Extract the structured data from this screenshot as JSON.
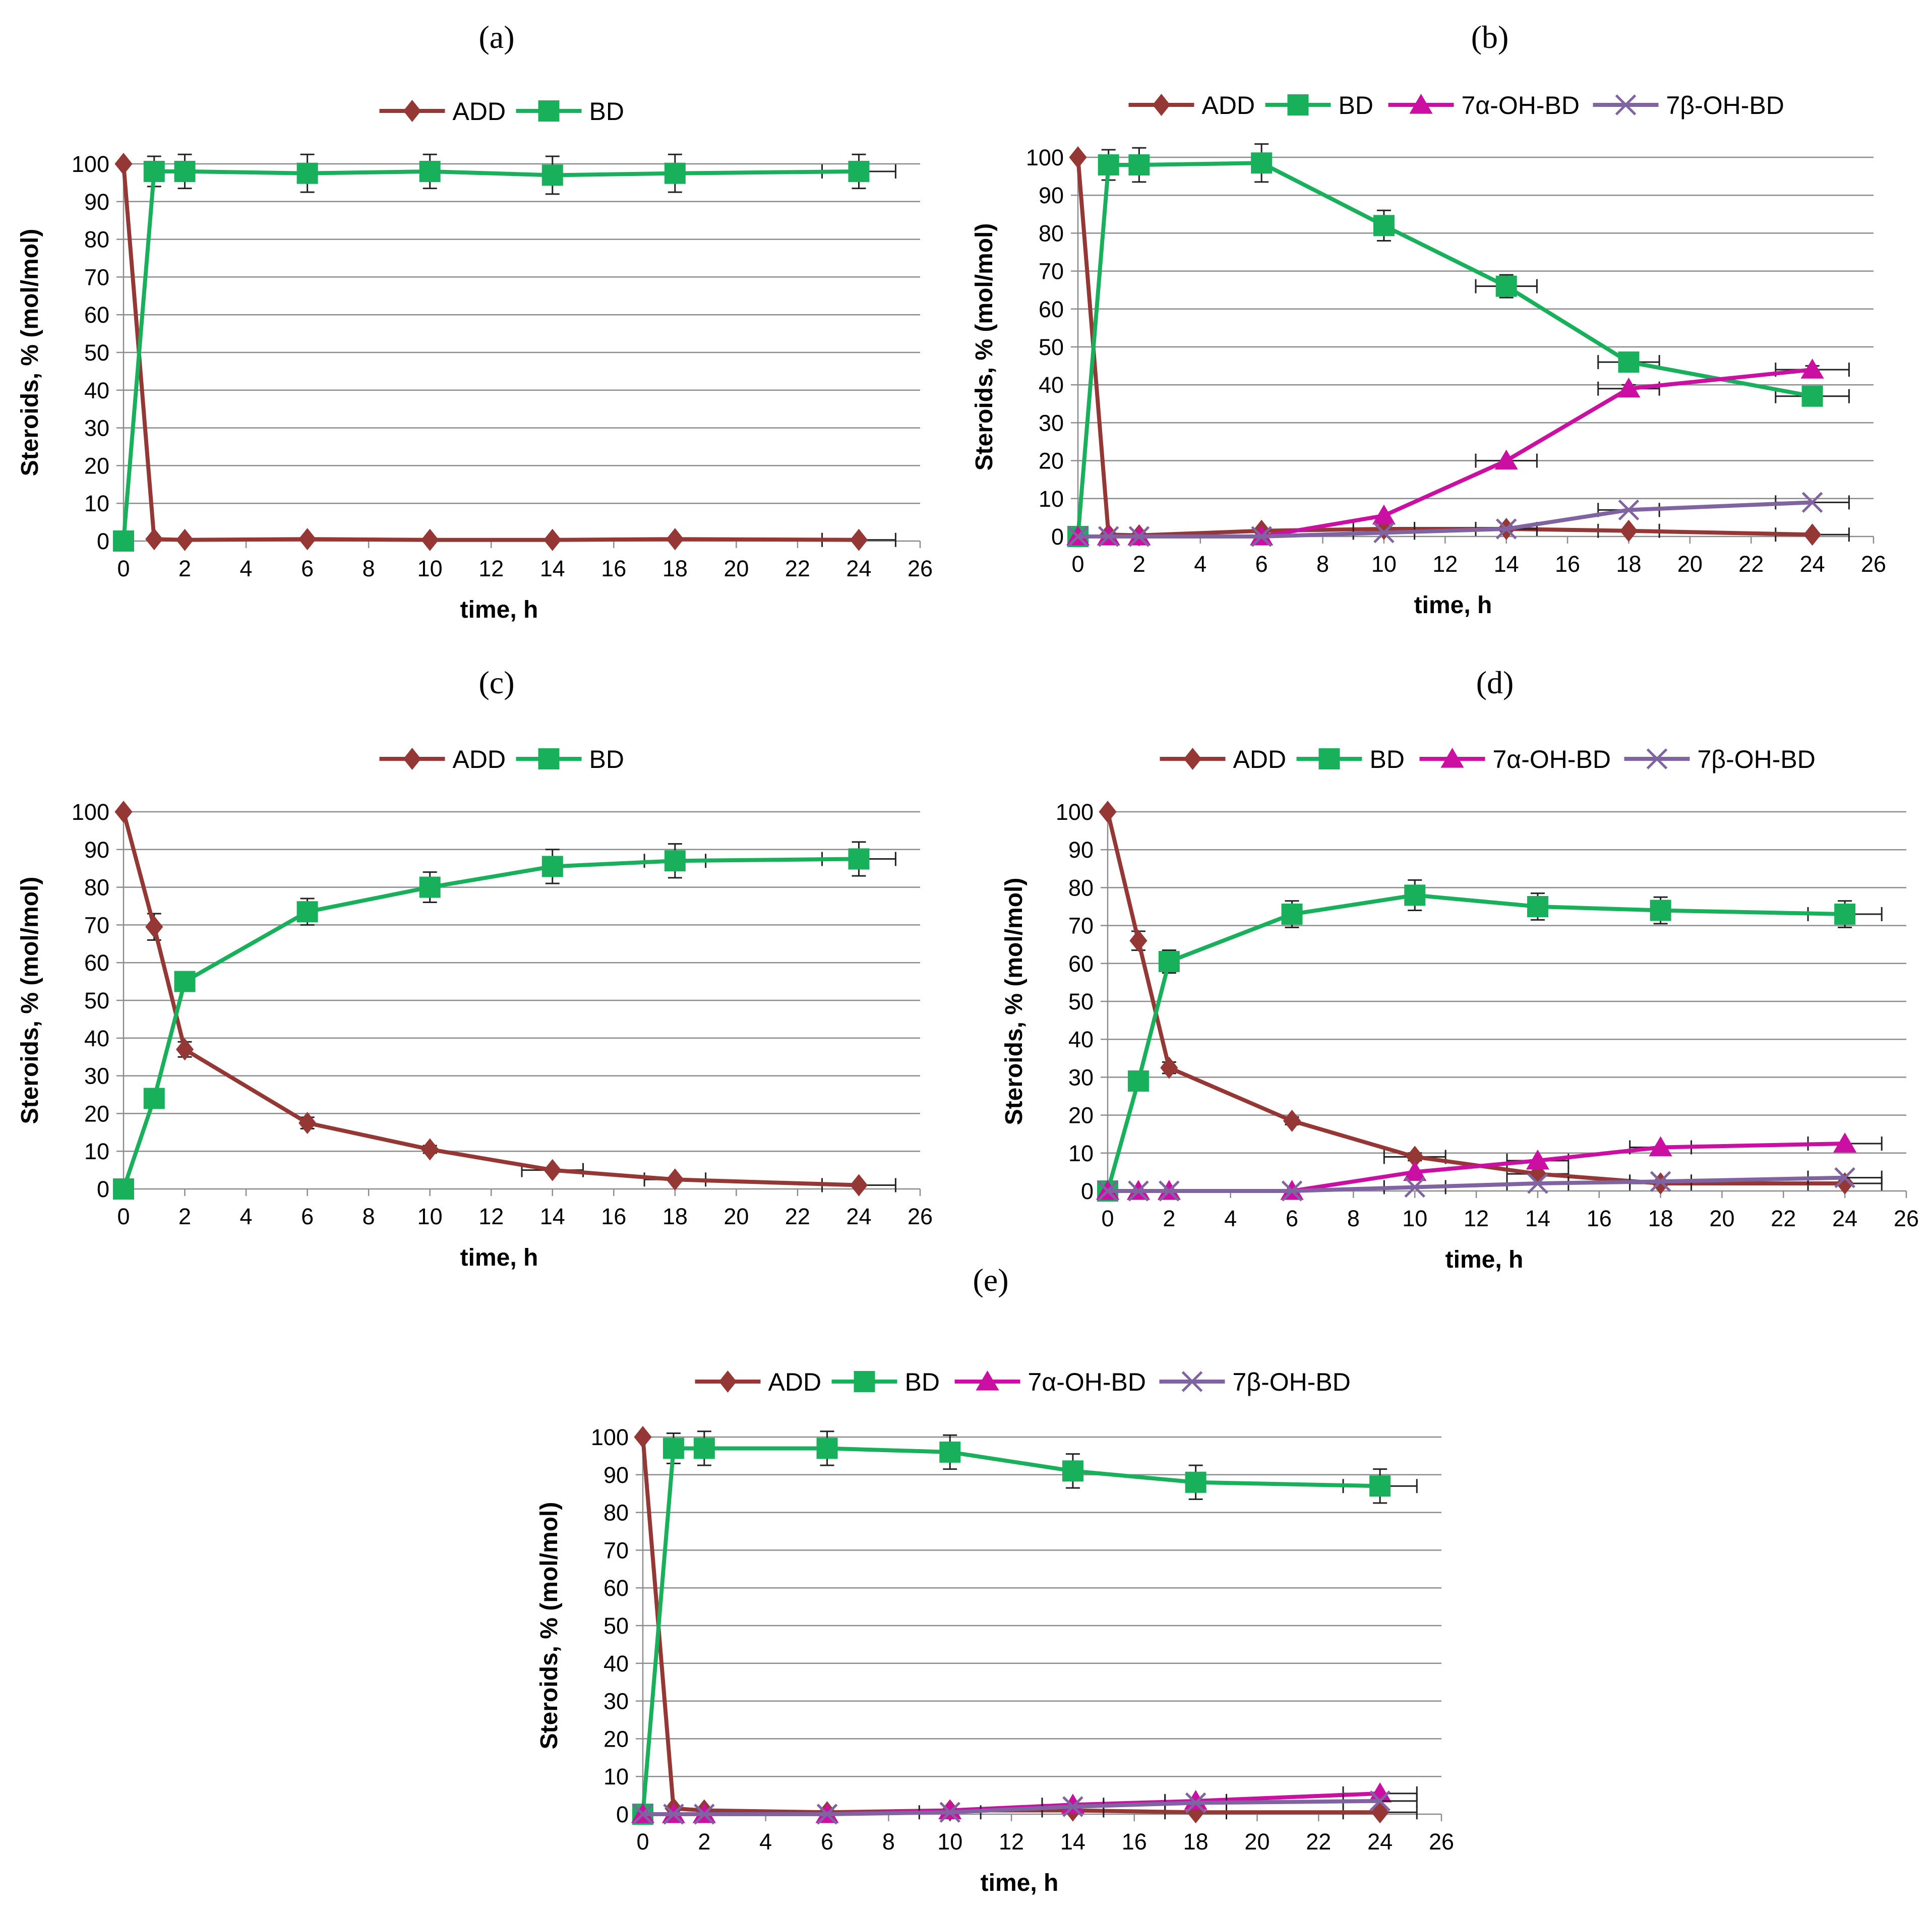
{
  "chart_data": [
    {
      "panel": "(a)",
      "type": "line",
      "xlabel": "time, h",
      "ylabel": "Steroids, % (mol/mol)",
      "xlim": [
        0,
        26
      ],
      "ylim": [
        0,
        100
      ],
      "xticks": [
        0,
        2,
        4,
        6,
        8,
        10,
        12,
        14,
        16,
        18,
        20,
        22,
        24,
        26
      ],
      "yticks": [
        0,
        10,
        20,
        30,
        40,
        50,
        60,
        70,
        80,
        90,
        100
      ],
      "grid": "horizontal",
      "legend": "top-center",
      "x": [
        0,
        1,
        2,
        6,
        10,
        14,
        18,
        24
      ],
      "series": [
        {
          "name": "ADD",
          "color": "#953735",
          "marker": "diamond",
          "values": [
            100,
            0.5,
            0.3,
            0.5,
            0.3,
            0.3,
            0.5,
            0.3
          ],
          "yerr": [
            0,
            0,
            0,
            0,
            0,
            0,
            0,
            0
          ],
          "xerr": [
            0,
            0,
            0,
            0,
            0,
            0,
            0,
            1.2
          ]
        },
        {
          "name": "BD",
          "color": "#19b05c",
          "marker": "square",
          "values": [
            0,
            98,
            98,
            97.5,
            98,
            97,
            97.5,
            98
          ],
          "yerr": [
            0,
            4,
            4.5,
            5,
            4.5,
            5,
            5,
            4.5
          ],
          "xerr": [
            0,
            0,
            0,
            0,
            0,
            0,
            0,
            1.2
          ]
        }
      ]
    },
    {
      "panel": "(b)",
      "type": "line",
      "xlabel": "time, h",
      "ylabel": "Steroids, % (mol/mol)",
      "xlim": [
        0,
        26
      ],
      "ylim": [
        0,
        100
      ],
      "xticks": [
        0,
        2,
        4,
        6,
        8,
        10,
        12,
        14,
        16,
        18,
        20,
        22,
        24,
        26
      ],
      "yticks": [
        0,
        10,
        20,
        30,
        40,
        50,
        60,
        70,
        80,
        90,
        100
      ],
      "grid": "horizontal",
      "legend": "top-center",
      "x": [
        0,
        1,
        2,
        6,
        10,
        14,
        18,
        24
      ],
      "series": [
        {
          "name": "ADD",
          "color": "#953735",
          "marker": "diamond",
          "values": [
            100,
            0.5,
            0.3,
            1.5,
            2,
            2,
            1.5,
            0.5
          ],
          "yerr": [
            0,
            0,
            0,
            0,
            0,
            0,
            0,
            0
          ],
          "xerr": [
            0,
            0,
            0,
            0,
            1,
            1,
            1,
            1.2
          ]
        },
        {
          "name": "BD",
          "color": "#19b05c",
          "marker": "square",
          "values": [
            0,
            98,
            98,
            98.5,
            82,
            66,
            46,
            37
          ],
          "yerr": [
            0,
            4,
            4.5,
            5,
            4,
            3,
            1.5,
            1
          ],
          "xerr": [
            0,
            0,
            0,
            0,
            0,
            1,
            1,
            1.2
          ]
        },
        {
          "name": "7α-OH-BD",
          "color": "#cc0fa3",
          "marker": "triangle",
          "values": [
            0,
            0,
            0,
            0,
            5.5,
            20,
            39,
            44
          ],
          "yerr": [
            0,
            0,
            0,
            0,
            0,
            0,
            1,
            1
          ],
          "xerr": [
            0,
            0,
            0,
            0,
            0,
            1,
            1,
            1.2
          ]
        },
        {
          "name": "7β-OH-BD",
          "color": "#8064a2",
          "marker": "x",
          "values": [
            0,
            0,
            0,
            0,
            1,
            2,
            7,
            9
          ],
          "yerr": [
            0,
            0,
            0,
            0,
            0,
            0,
            0,
            0
          ],
          "xerr": [
            0,
            0,
            0,
            0,
            1,
            1,
            1,
            1.2
          ]
        }
      ]
    },
    {
      "panel": "(c)",
      "type": "line",
      "xlabel": "time, h",
      "ylabel": "Steroids, % (mol/mol)",
      "xlim": [
        0,
        26
      ],
      "ylim": [
        0,
        100
      ],
      "xticks": [
        0,
        2,
        4,
        6,
        8,
        10,
        12,
        14,
        16,
        18,
        20,
        22,
        24,
        26
      ],
      "yticks": [
        0,
        10,
        20,
        30,
        40,
        50,
        60,
        70,
        80,
        90,
        100
      ],
      "grid": "horizontal",
      "legend": "top-center",
      "x": [
        0,
        1,
        2,
        6,
        10,
        14,
        18,
        24
      ],
      "series": [
        {
          "name": "ADD",
          "color": "#953735",
          "marker": "diamond",
          "values": [
            100,
            69.5,
            37,
            17.5,
            10.5,
            5,
            2.5,
            1
          ],
          "yerr": [
            0,
            3.5,
            2,
            1.5,
            1,
            0.5,
            0.5,
            0
          ],
          "xerr": [
            0,
            0,
            0,
            0,
            0,
            1,
            1,
            1.2
          ]
        },
        {
          "name": "BD",
          "color": "#19b05c",
          "marker": "square",
          "values": [
            0,
            24,
            55,
            73.5,
            80,
            85.5,
            87,
            87.5
          ],
          "yerr": [
            0,
            1.5,
            2,
            3.5,
            4,
            4.5,
            4.5,
            4.5
          ],
          "xerr": [
            0,
            0,
            0,
            0,
            0,
            0,
            1,
            1.2
          ]
        }
      ]
    },
    {
      "panel": "(d)",
      "type": "line",
      "xlabel": "time, h",
      "ylabel": "Steroids, % (mol/mol)",
      "xlim": [
        0,
        26
      ],
      "ylim": [
        0,
        100
      ],
      "xticks": [
        0,
        2,
        4,
        6,
        8,
        10,
        12,
        14,
        16,
        18,
        20,
        22,
        24,
        26
      ],
      "yticks": [
        0,
        10,
        20,
        30,
        40,
        50,
        60,
        70,
        80,
        90,
        100
      ],
      "grid": "horizontal",
      "legend": "top-center",
      "x": [
        0,
        1,
        2,
        6,
        10,
        14,
        18,
        24
      ],
      "series": [
        {
          "name": "ADD",
          "color": "#953735",
          "marker": "diamond",
          "values": [
            100,
            66,
            32.5,
            18.5,
            9,
            4.5,
            2,
            2
          ],
          "yerr": [
            0,
            2.5,
            1.5,
            1,
            1,
            0.5,
            0,
            0
          ],
          "xerr": [
            0,
            0,
            0,
            0,
            1,
            1,
            1,
            1.2
          ]
        },
        {
          "name": "BD",
          "color": "#19b05c",
          "marker": "square",
          "values": [
            0,
            29,
            60.5,
            73,
            78,
            75,
            74,
            73
          ],
          "yerr": [
            0,
            1.5,
            3,
            3.5,
            4,
            3.5,
            3.5,
            3.5
          ],
          "xerr": [
            0,
            0,
            0,
            0,
            0,
            0,
            0,
            1.2
          ]
        },
        {
          "name": "7α-OH-BD",
          "color": "#cc0fa3",
          "marker": "triangle",
          "values": [
            0,
            0,
            0,
            0,
            5,
            8,
            11.5,
            12.5
          ],
          "yerr": [
            0,
            0,
            0,
            0,
            0,
            0,
            0,
            0
          ],
          "xerr": [
            0,
            0,
            0,
            0,
            0,
            1,
            1,
            1.2
          ]
        },
        {
          "name": "7β-OH-BD",
          "color": "#8064a2",
          "marker": "x",
          "values": [
            0,
            0,
            0,
            0,
            1,
            2,
            2.5,
            3.5
          ],
          "yerr": [
            0,
            0,
            0,
            0,
            0,
            0,
            0,
            0
          ],
          "xerr": [
            0,
            0,
            0,
            0,
            1,
            1,
            1,
            1.2
          ]
        }
      ]
    },
    {
      "panel": "(e)",
      "type": "line",
      "xlabel": "time, h",
      "ylabel": "Steroids, % (mol/mol)",
      "xlim": [
        0,
        26
      ],
      "ylim": [
        0,
        100
      ],
      "xticks": [
        0,
        2,
        4,
        6,
        8,
        10,
        12,
        14,
        16,
        18,
        20,
        22,
        24,
        26
      ],
      "yticks": [
        0,
        10,
        20,
        30,
        40,
        50,
        60,
        70,
        80,
        90,
        100
      ],
      "grid": "horizontal",
      "legend": "top-center",
      "x": [
        0,
        1,
        2,
        6,
        10,
        14,
        18,
        24
      ],
      "series": [
        {
          "name": "ADD",
          "color": "#953735",
          "marker": "diamond",
          "values": [
            100,
            1.5,
            1,
            0.5,
            1,
            1,
            0.5,
            0.5
          ],
          "yerr": [
            0,
            0,
            0,
            0,
            0,
            0,
            0,
            0
          ],
          "xerr": [
            0,
            0,
            0,
            0,
            0,
            1,
            1,
            1.2
          ]
        },
        {
          "name": "BD",
          "color": "#19b05c",
          "marker": "square",
          "values": [
            0,
            97,
            97,
            97,
            96,
            91,
            88,
            87
          ],
          "yerr": [
            0,
            4,
            4.5,
            4.5,
            4.5,
            4.5,
            4.5,
            4.5
          ],
          "xerr": [
            0,
            0,
            0,
            0,
            0,
            0,
            0,
            1.2
          ]
        },
        {
          "name": "7α-OH-BD",
          "color": "#cc0fa3",
          "marker": "triangle",
          "values": [
            0,
            0,
            0,
            0,
            1,
            2.5,
            3.5,
            5.5
          ],
          "yerr": [
            0,
            0,
            0,
            0,
            0,
            0,
            0,
            0
          ],
          "xerr": [
            0,
            0,
            0,
            0,
            0,
            1,
            1,
            1.2
          ]
        },
        {
          "name": "7β-OH-BD",
          "color": "#8064a2",
          "marker": "x",
          "values": [
            0,
            0,
            0,
            0,
            0.5,
            2,
            3,
            3.5
          ],
          "yerr": [
            0,
            0,
            0,
            0,
            0,
            0,
            0,
            0
          ],
          "xerr": [
            0,
            0,
            0,
            0,
            1,
            1,
            1,
            1.2
          ]
        }
      ]
    }
  ]
}
